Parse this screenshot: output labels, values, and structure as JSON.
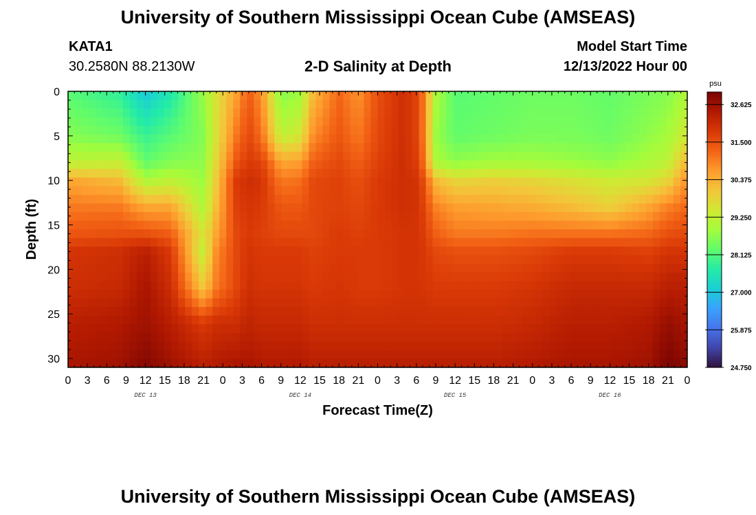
{
  "header": {
    "title": "University of Southern Mississippi Ocean Cube (AMSEAS)",
    "station": "KATA1",
    "coords": "30.2580N  88.2130W",
    "model_start_label": "Model Start Time",
    "model_start_time": "12/13/2022 Hour 00"
  },
  "footer": {
    "title": "University of Southern Mississippi Ocean Cube (AMSEAS)"
  },
  "colors": {
    "colormap": [
      "#30123b",
      "#4145ab",
      "#4675ed",
      "#39a2fc",
      "#1bcfd4",
      "#24eca6",
      "#61fc6c",
      "#a4fc3b",
      "#d1e834",
      "#f3c63a",
      "#fe9b2d",
      "#f36315",
      "#d93806",
      "#b11901",
      "#7a0402"
    ]
  },
  "chart_data": {
    "type": "heatmap",
    "title": "2-D Salinity at Depth",
    "xlabel": "Forecast Time(Z)",
    "ylabel": "Depth (ft)",
    "xlim": [
      0,
      96
    ],
    "ylim": [
      0,
      31
    ],
    "x_ticks": [
      0,
      3,
      6,
      9,
      12,
      15,
      18,
      21,
      24,
      27,
      30,
      33,
      36,
      39,
      42,
      45,
      48,
      51,
      54,
      57,
      60,
      63,
      66,
      69,
      72,
      75,
      78,
      81,
      84,
      87,
      90,
      93,
      96
    ],
    "x_tick_labels": [
      "0",
      "3",
      "6",
      "9",
      "12",
      "15",
      "18",
      "21",
      "0",
      "3",
      "6",
      "9",
      "12",
      "15",
      "18",
      "21",
      "0",
      "3",
      "6",
      "9",
      "12",
      "15",
      "18",
      "21",
      "0",
      "3",
      "6",
      "9",
      "12",
      "15",
      "18",
      "21",
      "0"
    ],
    "y_ticks": [
      0,
      5,
      10,
      15,
      20,
      25,
      30
    ],
    "y_tick_labels": [
      "0",
      "5",
      "10",
      "15",
      "20",
      "25",
      "30"
    ],
    "date_labels": [
      {
        "hour": 12,
        "label": "DEC 13"
      },
      {
        "hour": 36,
        "label": "DEC 14"
      },
      {
        "hour": 60,
        "label": "DEC 15"
      },
      {
        "hour": 84,
        "label": "DEC 16"
      }
    ],
    "colorbar": {
      "unit": "psu",
      "min": 24.75,
      "max": 33.0,
      "ticks": [
        32.625,
        31.5,
        30.375,
        29.25,
        28.125,
        27.0,
        25.875,
        24.75
      ],
      "tick_labels": [
        "32.625",
        "31.500",
        "30.375",
        "29.250",
        "28.125",
        "27.000",
        "25.875",
        "24.750"
      ]
    },
    "x_hours": [
      0,
      8,
      12,
      16,
      21,
      23,
      26,
      28,
      30,
      33,
      36,
      38,
      42,
      45,
      48,
      52,
      54.5,
      57,
      60,
      66,
      72,
      78,
      84,
      90,
      93,
      96
    ],
    "depths_ft": [
      0,
      5,
      8,
      10,
      13,
      16,
      18,
      22,
      26,
      31
    ],
    "salinity_psu": [
      [
        28.2,
        28.6,
        29.2,
        30.5,
        31.0,
        31.4,
        31.9,
        32.0,
        32.3,
        32.5
      ],
      [
        27.8,
        28.4,
        29.3,
        30.2,
        31.0,
        31.5,
        32.0,
        32.1,
        32.4,
        32.6
      ],
      [
        27.0,
        27.9,
        28.3,
        29.0,
        30.5,
        31.5,
        32.3,
        32.5,
        32.6,
        32.9
      ],
      [
        27.6,
        28.2,
        28.6,
        29.2,
        30.5,
        31.3,
        31.8,
        32.0,
        32.3,
        32.6
      ],
      [
        28.8,
        28.6,
        28.7,
        28.8,
        29.0,
        29.5,
        29.2,
        30.0,
        31.8,
        32.3
      ],
      [
        29.6,
        29.6,
        29.8,
        30.0,
        30.2,
        30.5,
        30.8,
        31.0,
        32.0,
        32.4
      ],
      [
        30.5,
        31.0,
        31.4,
        31.8,
        31.7,
        31.6,
        31.6,
        31.6,
        32.0,
        32.5
      ],
      [
        31.3,
        31.6,
        31.8,
        32.0,
        31.9,
        31.8,
        31.9,
        32.0,
        32.2,
        32.5
      ],
      [
        30.7,
        31.1,
        31.7,
        31.9,
        31.8,
        31.7,
        31.8,
        31.9,
        32.1,
        32.4
      ],
      [
        28.6,
        29.2,
        30.5,
        31.0,
        31.4,
        31.6,
        31.8,
        31.9,
        32.1,
        32.4
      ],
      [
        28.8,
        29.5,
        30.6,
        31.1,
        31.4,
        31.6,
        31.8,
        31.9,
        32.1,
        32.4
      ],
      [
        30.2,
        30.8,
        31.3,
        31.6,
        31.6,
        31.6,
        31.7,
        31.8,
        32.0,
        32.3
      ],
      [
        31.2,
        31.4,
        31.6,
        31.7,
        31.7,
        31.8,
        31.8,
        31.9,
        32.0,
        32.3
      ],
      [
        30.7,
        31.0,
        31.3,
        31.5,
        31.6,
        31.7,
        31.8,
        31.8,
        32.0,
        32.3
      ],
      [
        31.5,
        31.6,
        31.7,
        31.8,
        31.8,
        31.8,
        31.8,
        31.8,
        32.0,
        32.3
      ],
      [
        32.0,
        32.0,
        32.0,
        32.0,
        32.0,
        31.9,
        31.9,
        31.9,
        32.0,
        32.3
      ],
      [
        31.6,
        31.6,
        31.7,
        31.9,
        31.9,
        31.9,
        31.9,
        31.9,
        32.0,
        32.3
      ],
      [
        29.0,
        28.8,
        29.0,
        30.2,
        30.9,
        31.3,
        31.6,
        31.8,
        32.0,
        32.3
      ],
      [
        28.2,
        28.3,
        28.7,
        29.8,
        30.6,
        31.0,
        31.5,
        31.8,
        32.0,
        32.3
      ],
      [
        28.3,
        28.4,
        28.9,
        29.9,
        30.5,
        31.0,
        31.5,
        31.8,
        32.0,
        32.3
      ],
      [
        28.4,
        28.5,
        28.9,
        29.8,
        30.4,
        31.1,
        31.6,
        31.9,
        32.1,
        32.4
      ],
      [
        28.4,
        28.5,
        28.8,
        29.6,
        30.2,
        31.1,
        31.8,
        32.1,
        32.3,
        32.5
      ],
      [
        28.3,
        28.4,
        28.7,
        29.4,
        29.9,
        31.1,
        31.8,
        32.1,
        32.3,
        32.5
      ],
      [
        28.5,
        28.7,
        29.0,
        29.5,
        30.5,
        31.2,
        31.7,
        32.1,
        32.4,
        32.6
      ],
      [
        28.6,
        28.9,
        29.2,
        29.8,
        30.9,
        31.5,
        31.9,
        32.3,
        32.7,
        33.0
      ],
      [
        29.0,
        29.5,
        30.3,
        30.8,
        31.2,
        31.6,
        31.9,
        32.3,
        32.5,
        32.8
      ]
    ]
  }
}
